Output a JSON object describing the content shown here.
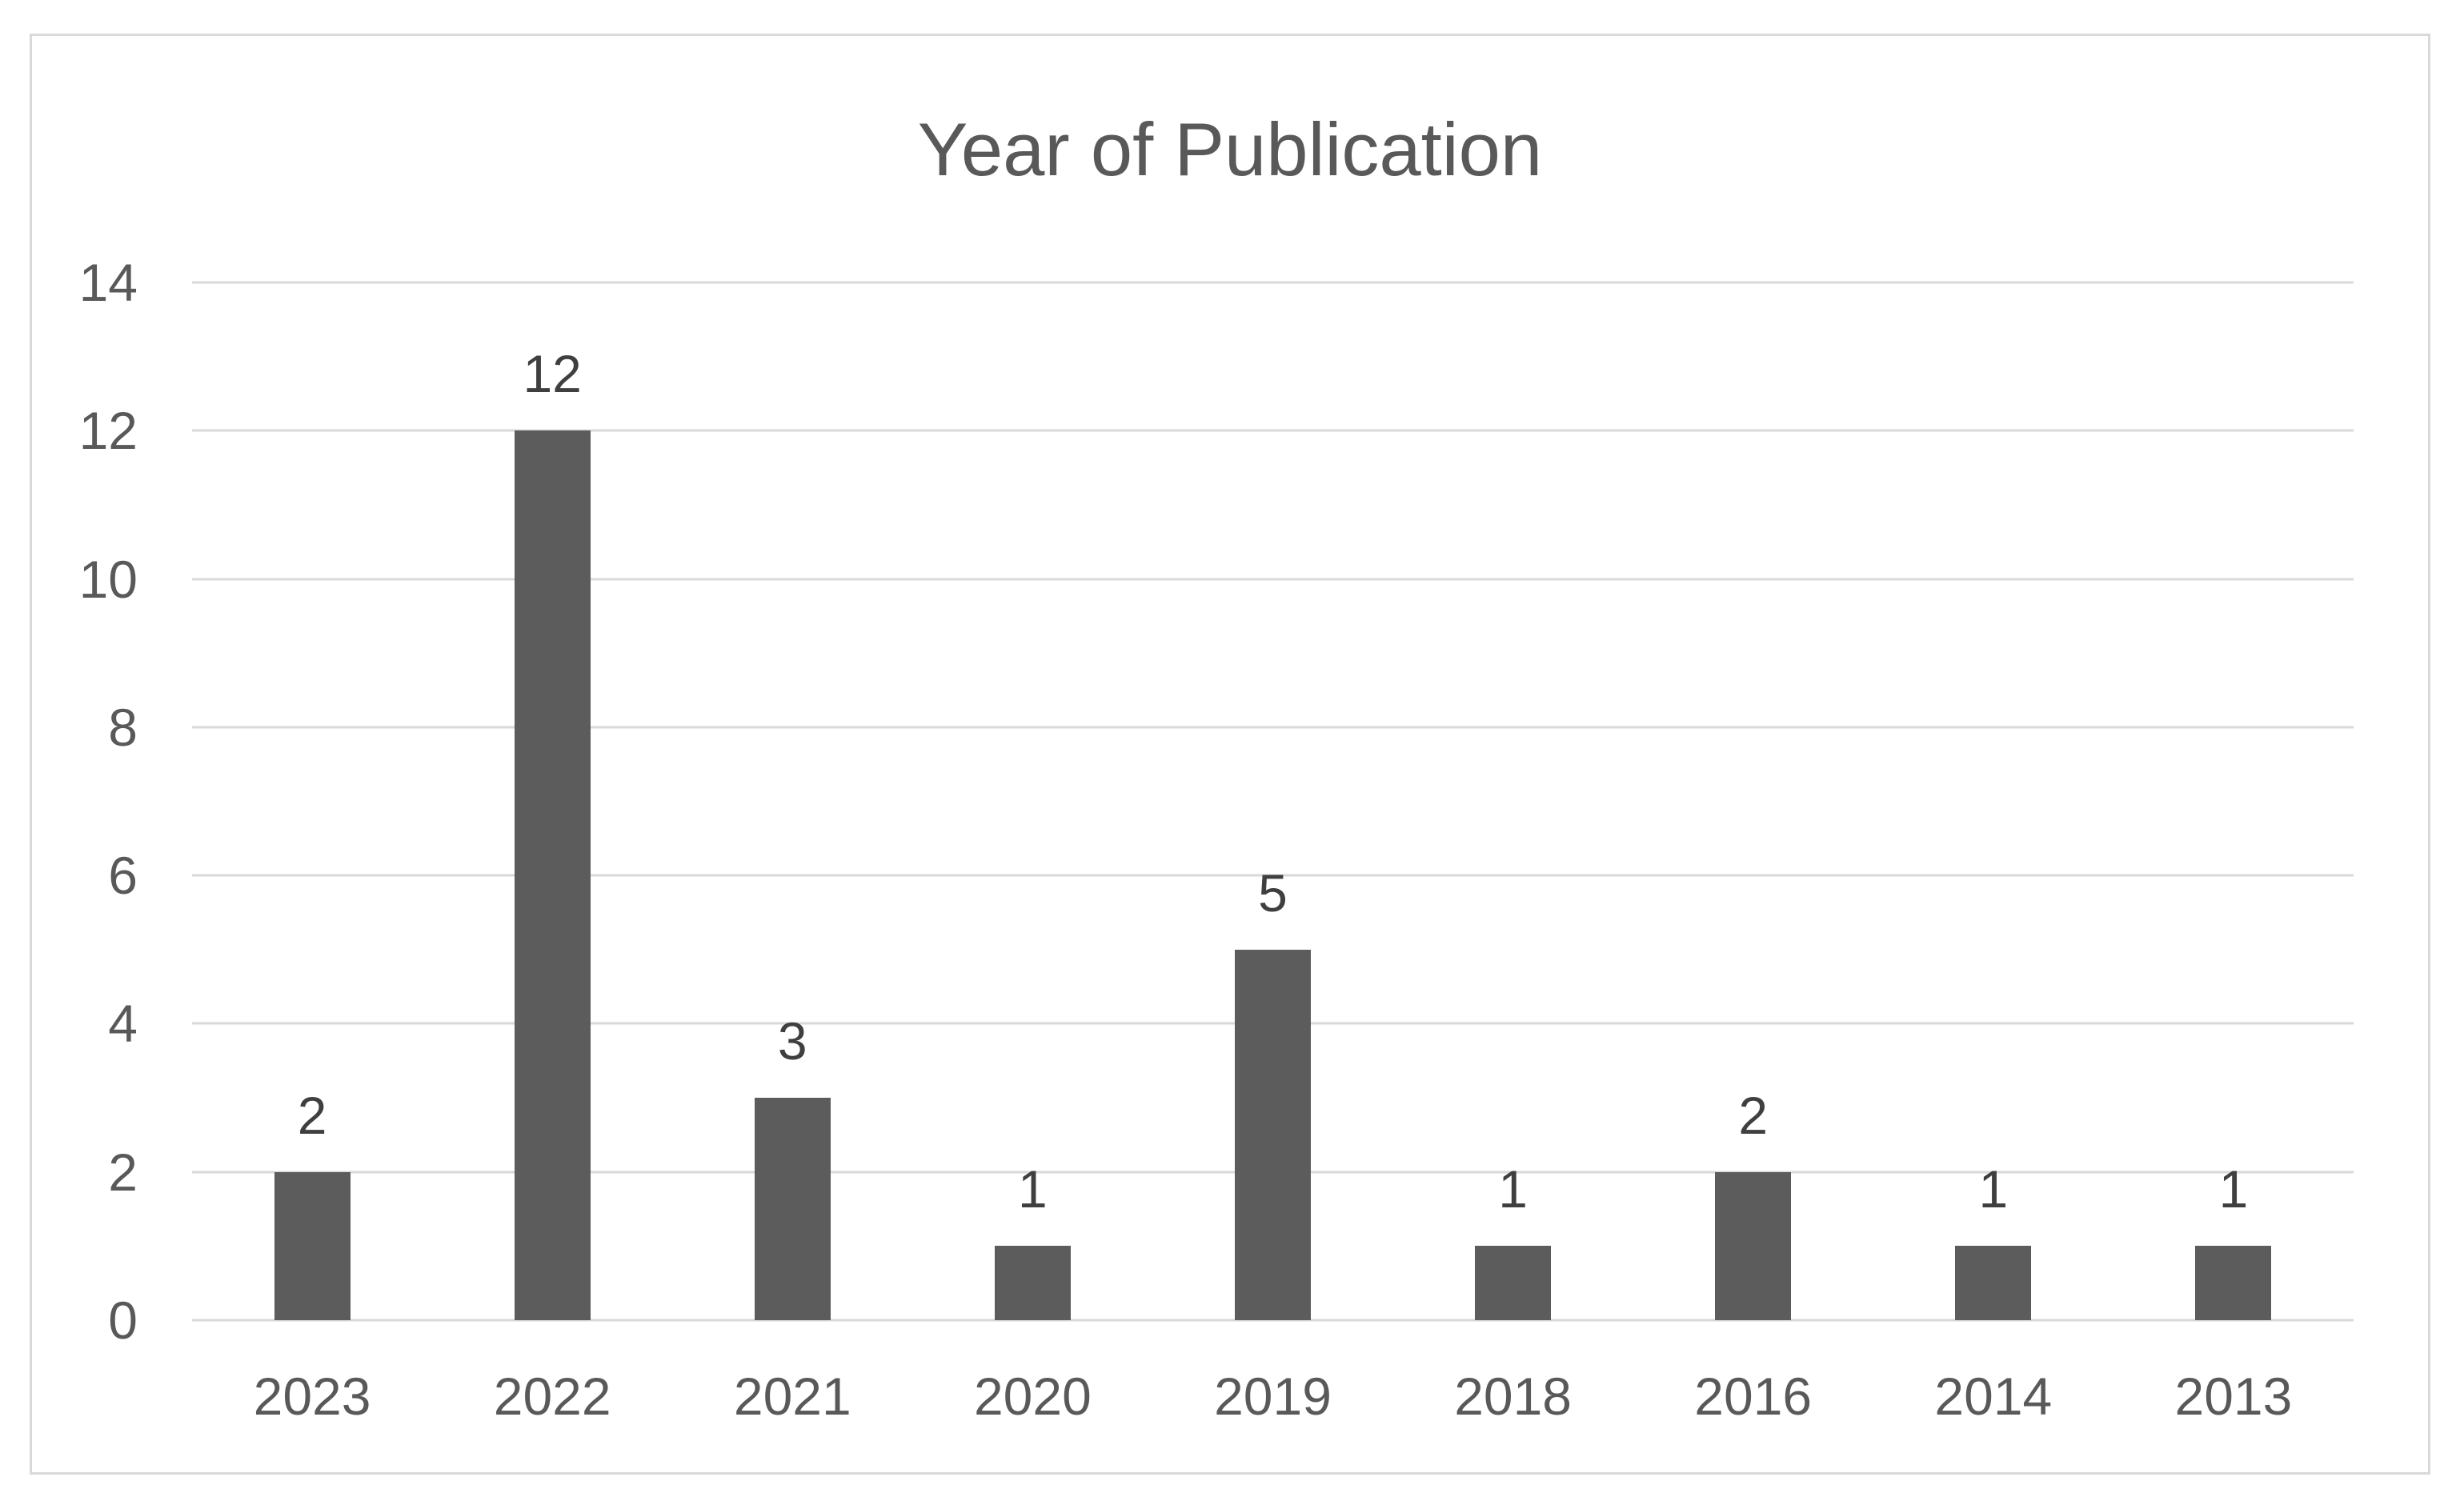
{
  "chart_data": {
    "type": "bar",
    "title": "Year of Publication",
    "categories": [
      "2023",
      "2022",
      "2021",
      "2020",
      "2019",
      "2018",
      "2016",
      "2014",
      "2013"
    ],
    "values": [
      2,
      12,
      3,
      1,
      5,
      1,
      2,
      1,
      1
    ],
    "xlabel": "",
    "ylabel": "",
    "ylim": [
      0,
      14
    ],
    "y_ticks": [
      0,
      2,
      4,
      6,
      8,
      10,
      12,
      14
    ],
    "grid": true,
    "legend_position": "none",
    "data_labels_shown": true,
    "colors": {
      "bar_fill": "#5C5C5C",
      "gridline": "#D9D9D9",
      "frame_border": "#D9D9D9",
      "title_text": "#595959",
      "axis_label_text": "#595959",
      "data_label_text": "#3F3F3F",
      "background": "#FFFFFF"
    }
  }
}
